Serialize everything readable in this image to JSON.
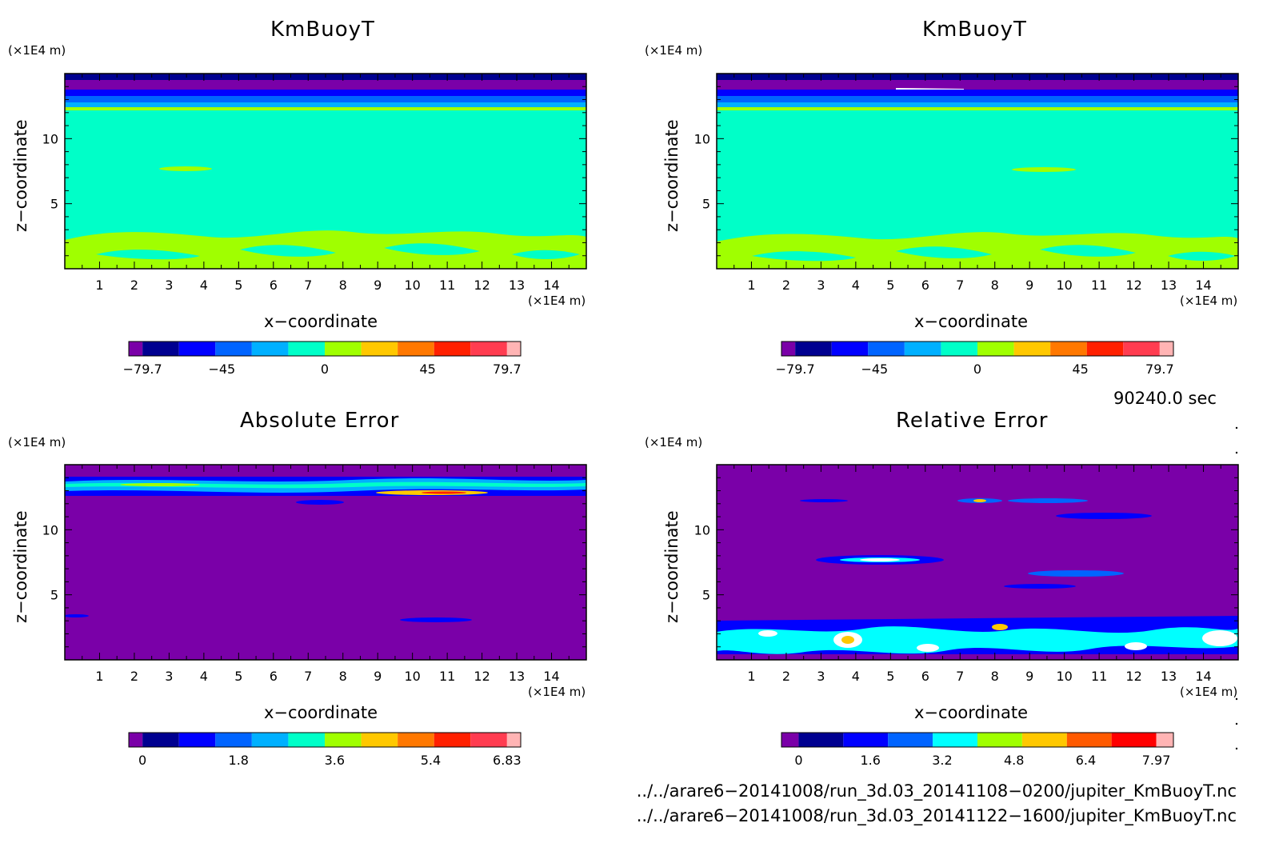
{
  "chart_data": [
    {
      "type": "heatmap",
      "title": "KmBuoyT",
      "xlabel": "x−coordinate",
      "ylabel": "z−coordinate",
      "x_unit": "(×1E4 m)",
      "y_unit": "(×1E4 m)",
      "xlim": [
        0,
        15
      ],
      "ylim": [
        0,
        15
      ],
      "x_ticks": [
        1,
        2,
        3,
        4,
        5,
        6,
        7,
        8,
        9,
        10,
        11,
        12,
        13,
        14
      ],
      "y_ticks": [
        5,
        10
      ],
      "colorbar": {
        "range": [
          -79.7,
          79.7
        ],
        "labels": [
          "−79.7",
          "−45",
          "0",
          "45",
          "79.7"
        ],
        "label_values": [
          -79.7,
          -45,
          0,
          45,
          79.7
        ]
      }
    },
    {
      "type": "heatmap",
      "title": "KmBuoyT",
      "xlabel": "x−coordinate",
      "ylabel": "z−coordinate",
      "x_unit": "(×1E4 m)",
      "y_unit": "(×1E4 m)",
      "xlim": [
        0,
        15
      ],
      "ylim": [
        0,
        15
      ],
      "x_ticks": [
        1,
        2,
        3,
        4,
        5,
        6,
        7,
        8,
        9,
        10,
        11,
        12,
        13,
        14
      ],
      "y_ticks": [
        5,
        10
      ],
      "colorbar": {
        "range": [
          -79.7,
          79.7
        ],
        "labels": [
          "−79.7",
          "−45",
          "0",
          "45",
          "79.7"
        ],
        "label_values": [
          -79.7,
          -45,
          0,
          45,
          79.7
        ]
      }
    },
    {
      "type": "heatmap",
      "title": "Absolute Error",
      "xlabel": "x−coordinate",
      "ylabel": "z−coordinate",
      "x_unit": "(×1E4 m)",
      "y_unit": "(×1E4 m)",
      "xlim": [
        0,
        15
      ],
      "ylim": [
        0,
        15
      ],
      "x_ticks": [
        1,
        2,
        3,
        4,
        5,
        6,
        7,
        8,
        9,
        10,
        11,
        12,
        13,
        14
      ],
      "y_ticks": [
        5,
        10
      ],
      "colorbar": {
        "range": [
          0,
          6.83
        ],
        "labels": [
          "0",
          "1.8",
          "3.6",
          "5.4",
          "6.83"
        ],
        "label_values": [
          0,
          1.8,
          3.6,
          5.4,
          6.83
        ]
      }
    },
    {
      "type": "heatmap",
      "title": "Relative Error",
      "xlabel": "x−coordinate",
      "ylabel": "z−coordinate",
      "x_unit": "(×1E4 m)",
      "y_unit": "(×1E4 m)",
      "xlim": [
        0,
        15
      ],
      "ylim": [
        0,
        15
      ],
      "x_ticks": [
        1,
        2,
        3,
        4,
        5,
        6,
        7,
        8,
        9,
        10,
        11,
        12,
        13,
        14
      ],
      "y_ticks": [
        5,
        10
      ],
      "colorbar": {
        "range": [
          0,
          7.97
        ],
        "labels": [
          "0",
          "1.6",
          "3.2",
          "4.8",
          "6.4",
          "7.97"
        ],
        "label_values": [
          0,
          1.6,
          3.2,
          4.8,
          6.4,
          7.97
        ]
      }
    }
  ],
  "colors": {
    "colorbar_kmbuoyt": [
      "#7a00a8",
      "#000090",
      "#0000ff",
      "#0064ff",
      "#00b0ff",
      "#00ffc8",
      "#a0ff00",
      "#ffc800",
      "#ff7800",
      "#ff2000",
      "#ff3c50",
      "#ffb4b4"
    ],
    "colorbar_abs": [
      "#7a00a8",
      "#000090",
      "#0000ff",
      "#0064ff",
      "#00b0ff",
      "#00ffc8",
      "#a0ff00",
      "#ffc800",
      "#ff7800",
      "#ff2000",
      "#ff3c50",
      "#ffb4b4"
    ],
    "colorbar_rel": [
      "#7a00a8",
      "#000090",
      "#0000ff",
      "#0064ff",
      "#00ffff",
      "#a0ff00",
      "#ffc800",
      "#ff5a00",
      "#ff0000",
      "#ffb4b4"
    ]
  },
  "time_label": "90240.0 sec",
  "file_paths": [
    "../../arare6−20141008/run_3d.03_20141108−0200/jupiter_KmBuoyT.nc",
    "../../arare6−20141008/run_3d.03_20141122−1600/jupiter_KmBuoyT.nc"
  ]
}
